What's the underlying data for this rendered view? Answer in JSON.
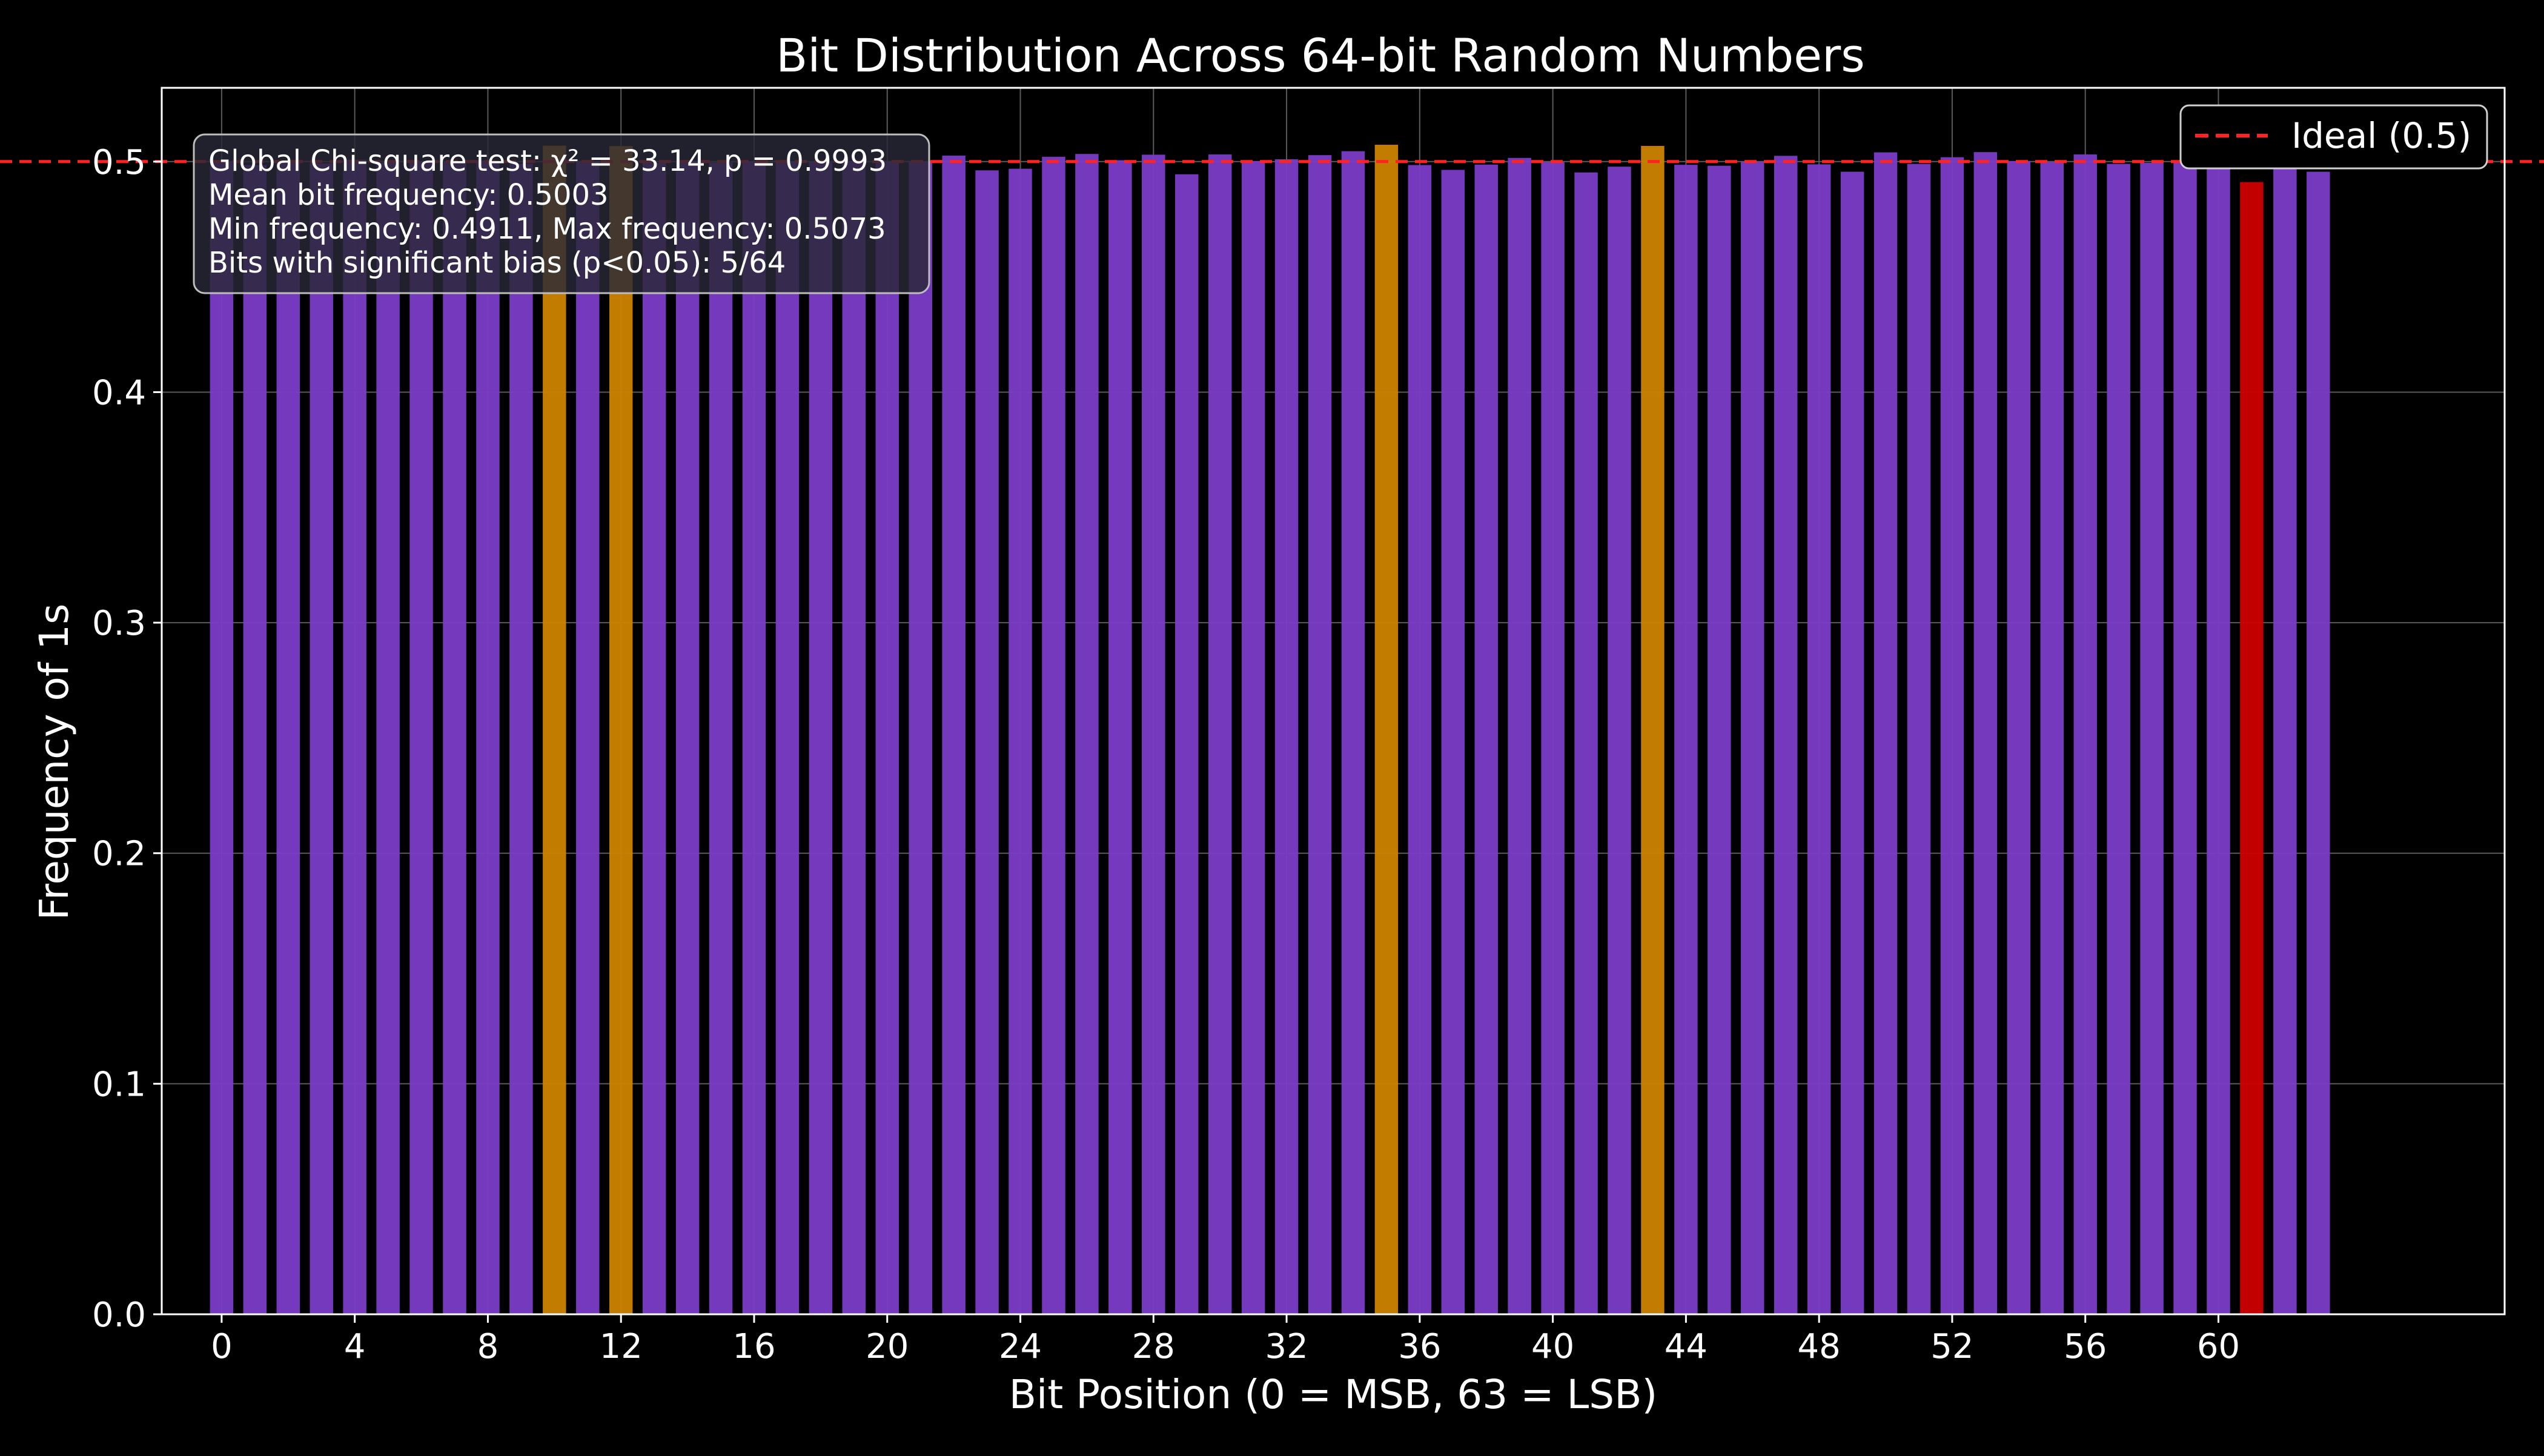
{
  "chart_data": {
    "type": "bar",
    "title": "Bit Distribution Across 64-bit Random Numbers",
    "xlabel": "Bit Position (0 = MSB, 63 = LSB)",
    "ylabel": "Frequency of 1s",
    "x": [
      0,
      1,
      2,
      3,
      4,
      5,
      6,
      7,
      8,
      9,
      10,
      11,
      12,
      13,
      14,
      15,
      16,
      17,
      18,
      19,
      20,
      21,
      22,
      23,
      24,
      25,
      26,
      27,
      28,
      29,
      30,
      31,
      32,
      33,
      34,
      35,
      36,
      37,
      38,
      39,
      40,
      41,
      42,
      43,
      44,
      45,
      46,
      47,
      48,
      49,
      50,
      51,
      52,
      53,
      54,
      55,
      56,
      57,
      58,
      59,
      60,
      61,
      62,
      63
    ],
    "values": [
      0.5002,
      0.4985,
      0.5004,
      0.4992,
      0.5008,
      0.4995,
      0.5001,
      0.4997,
      0.5005,
      0.499,
      0.5069,
      0.4998,
      0.5067,
      0.4994,
      0.5003,
      0.4996,
      0.5,
      0.5002,
      0.4999,
      0.5001,
      0.5,
      0.4999,
      0.5026,
      0.4962,
      0.4969,
      0.5021,
      0.5033,
      0.5006,
      0.503,
      0.4945,
      0.5031,
      0.5002,
      0.501,
      0.5028,
      0.5045,
      0.5073,
      0.4985,
      0.4964,
      0.4987,
      0.5016,
      0.4998,
      0.4953,
      0.4978,
      0.5068,
      0.4986,
      0.4982,
      0.4999,
      0.5025,
      0.4988,
      0.4956,
      0.504,
      0.499,
      0.5019,
      0.5041,
      0.5002,
      0.4998,
      0.5031,
      0.499,
      0.4995,
      0.4996,
      0.499,
      0.4911,
      0.4998,
      0.4956
    ],
    "bar_colors": [
      "purple",
      "purple",
      "purple",
      "purple",
      "purple",
      "purple",
      "purple",
      "purple",
      "purple",
      "purple",
      "orange",
      "purple",
      "orange",
      "purple",
      "purple",
      "purple",
      "purple",
      "purple",
      "purple",
      "purple",
      "purple",
      "purple",
      "purple",
      "purple",
      "purple",
      "purple",
      "purple",
      "purple",
      "purple",
      "purple",
      "purple",
      "purple",
      "purple",
      "purple",
      "purple",
      "orange",
      "purple",
      "purple",
      "purple",
      "purple",
      "purple",
      "purple",
      "purple",
      "orange",
      "purple",
      "purple",
      "purple",
      "purple",
      "purple",
      "purple",
      "purple",
      "purple",
      "purple",
      "purple",
      "purple",
      "purple",
      "purple",
      "purple",
      "purple",
      "purple",
      "purple",
      "red",
      "purple",
      "purple"
    ],
    "palette": {
      "purple": "#7b3cc8",
      "orange": "#cc8400",
      "red": "#cc0000",
      "ideal_line": "#ff2222",
      "grid": "#5a5a5a",
      "axis": "#ffffff"
    },
    "xticks": [
      "0",
      "4",
      "8",
      "12",
      "16",
      "20",
      "24",
      "28",
      "32",
      "36",
      "40",
      "44",
      "48",
      "52",
      "56",
      "60"
    ],
    "yticks": [
      "0.0",
      "0.1",
      "0.2",
      "0.3",
      "0.4",
      "0.5"
    ],
    "xlim": [
      -1.8,
      68.6
    ],
    "ylim": [
      0,
      0.532
    ],
    "ideal_value": 0.5,
    "legend": {
      "label": "Ideal (0.5)",
      "placement": "upper right"
    },
    "grid": true,
    "stats_box": [
      "Global Chi-square test: χ² = 33.14, p = 0.9993",
      "Mean bit frequency: 0.5003",
      "Min frequency: 0.4911, Max frequency: 0.5073",
      "Bits with significant bias (p<0.05): 5/64"
    ]
  }
}
